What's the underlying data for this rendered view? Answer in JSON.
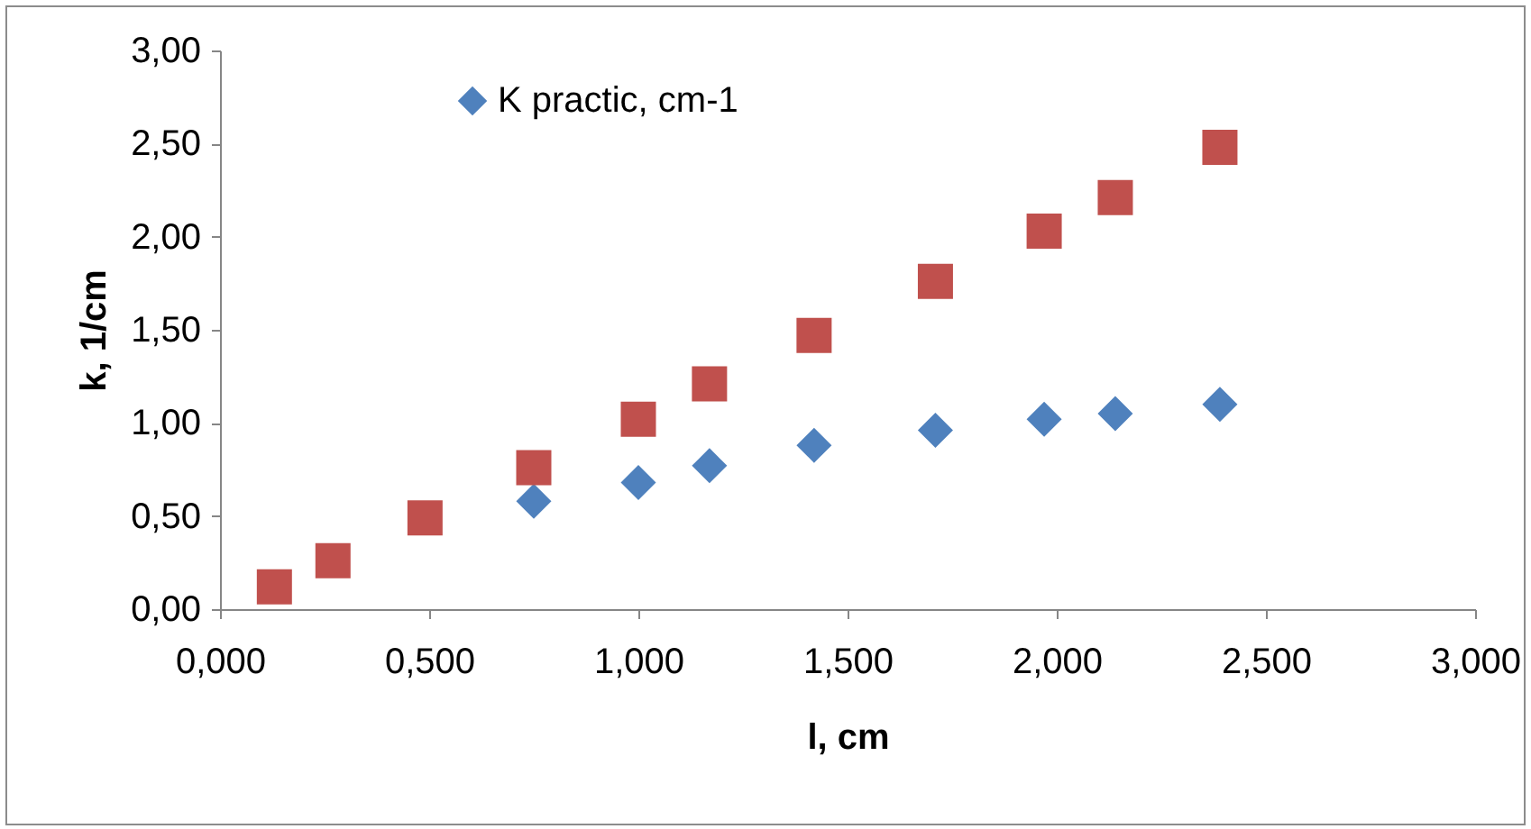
{
  "chart_data": {
    "type": "scatter",
    "xlabel": "l, cm",
    "ylabel": "k, 1/cm",
    "xlim": [
      0,
      3
    ],
    "ylim": [
      0,
      3
    ],
    "xticks": [
      {
        "value": 0,
        "label": "0,000"
      },
      {
        "value": 0.5,
        "label": "0,500"
      },
      {
        "value": 1,
        "label": "1,000"
      },
      {
        "value": 1.5,
        "label": "1,500"
      },
      {
        "value": 2,
        "label": "2,000"
      },
      {
        "value": 2.5,
        "label": "2,500"
      },
      {
        "value": 3,
        "label": "3,000"
      }
    ],
    "yticks": [
      {
        "value": 0,
        "label": "0,00"
      },
      {
        "value": 0.5,
        "label": "0,50"
      },
      {
        "value": 1,
        "label": "1,00"
      },
      {
        "value": 1.5,
        "label": "1,50"
      },
      {
        "value": 2,
        "label": "2,00"
      },
      {
        "value": 2.5,
        "label": "2,50"
      },
      {
        "value": 3,
        "label": "3,00"
      }
    ],
    "x": [
      0.13,
      0.27,
      0.49,
      0.75,
      1.0,
      1.17,
      1.42,
      1.71,
      1.97,
      2.14,
      2.39
    ],
    "grid": false,
    "legend": "top left",
    "series": [
      {
        "name": "K practic, cm-1",
        "color": "#4f81bd",
        "marker": "diamond",
        "values": [
          null,
          null,
          null,
          0.58,
          0.68,
          0.77,
          0.88,
          0.96,
          1.02,
          1.05,
          1.1
        ]
      },
      {
        "color": "#c0504d",
        "marker": "square",
        "values": [
          0.12,
          0.26,
          0.49,
          0.76,
          1.02,
          1.21,
          1.47,
          1.76,
          2.03,
          2.21,
          2.48
        ]
      }
    ]
  }
}
